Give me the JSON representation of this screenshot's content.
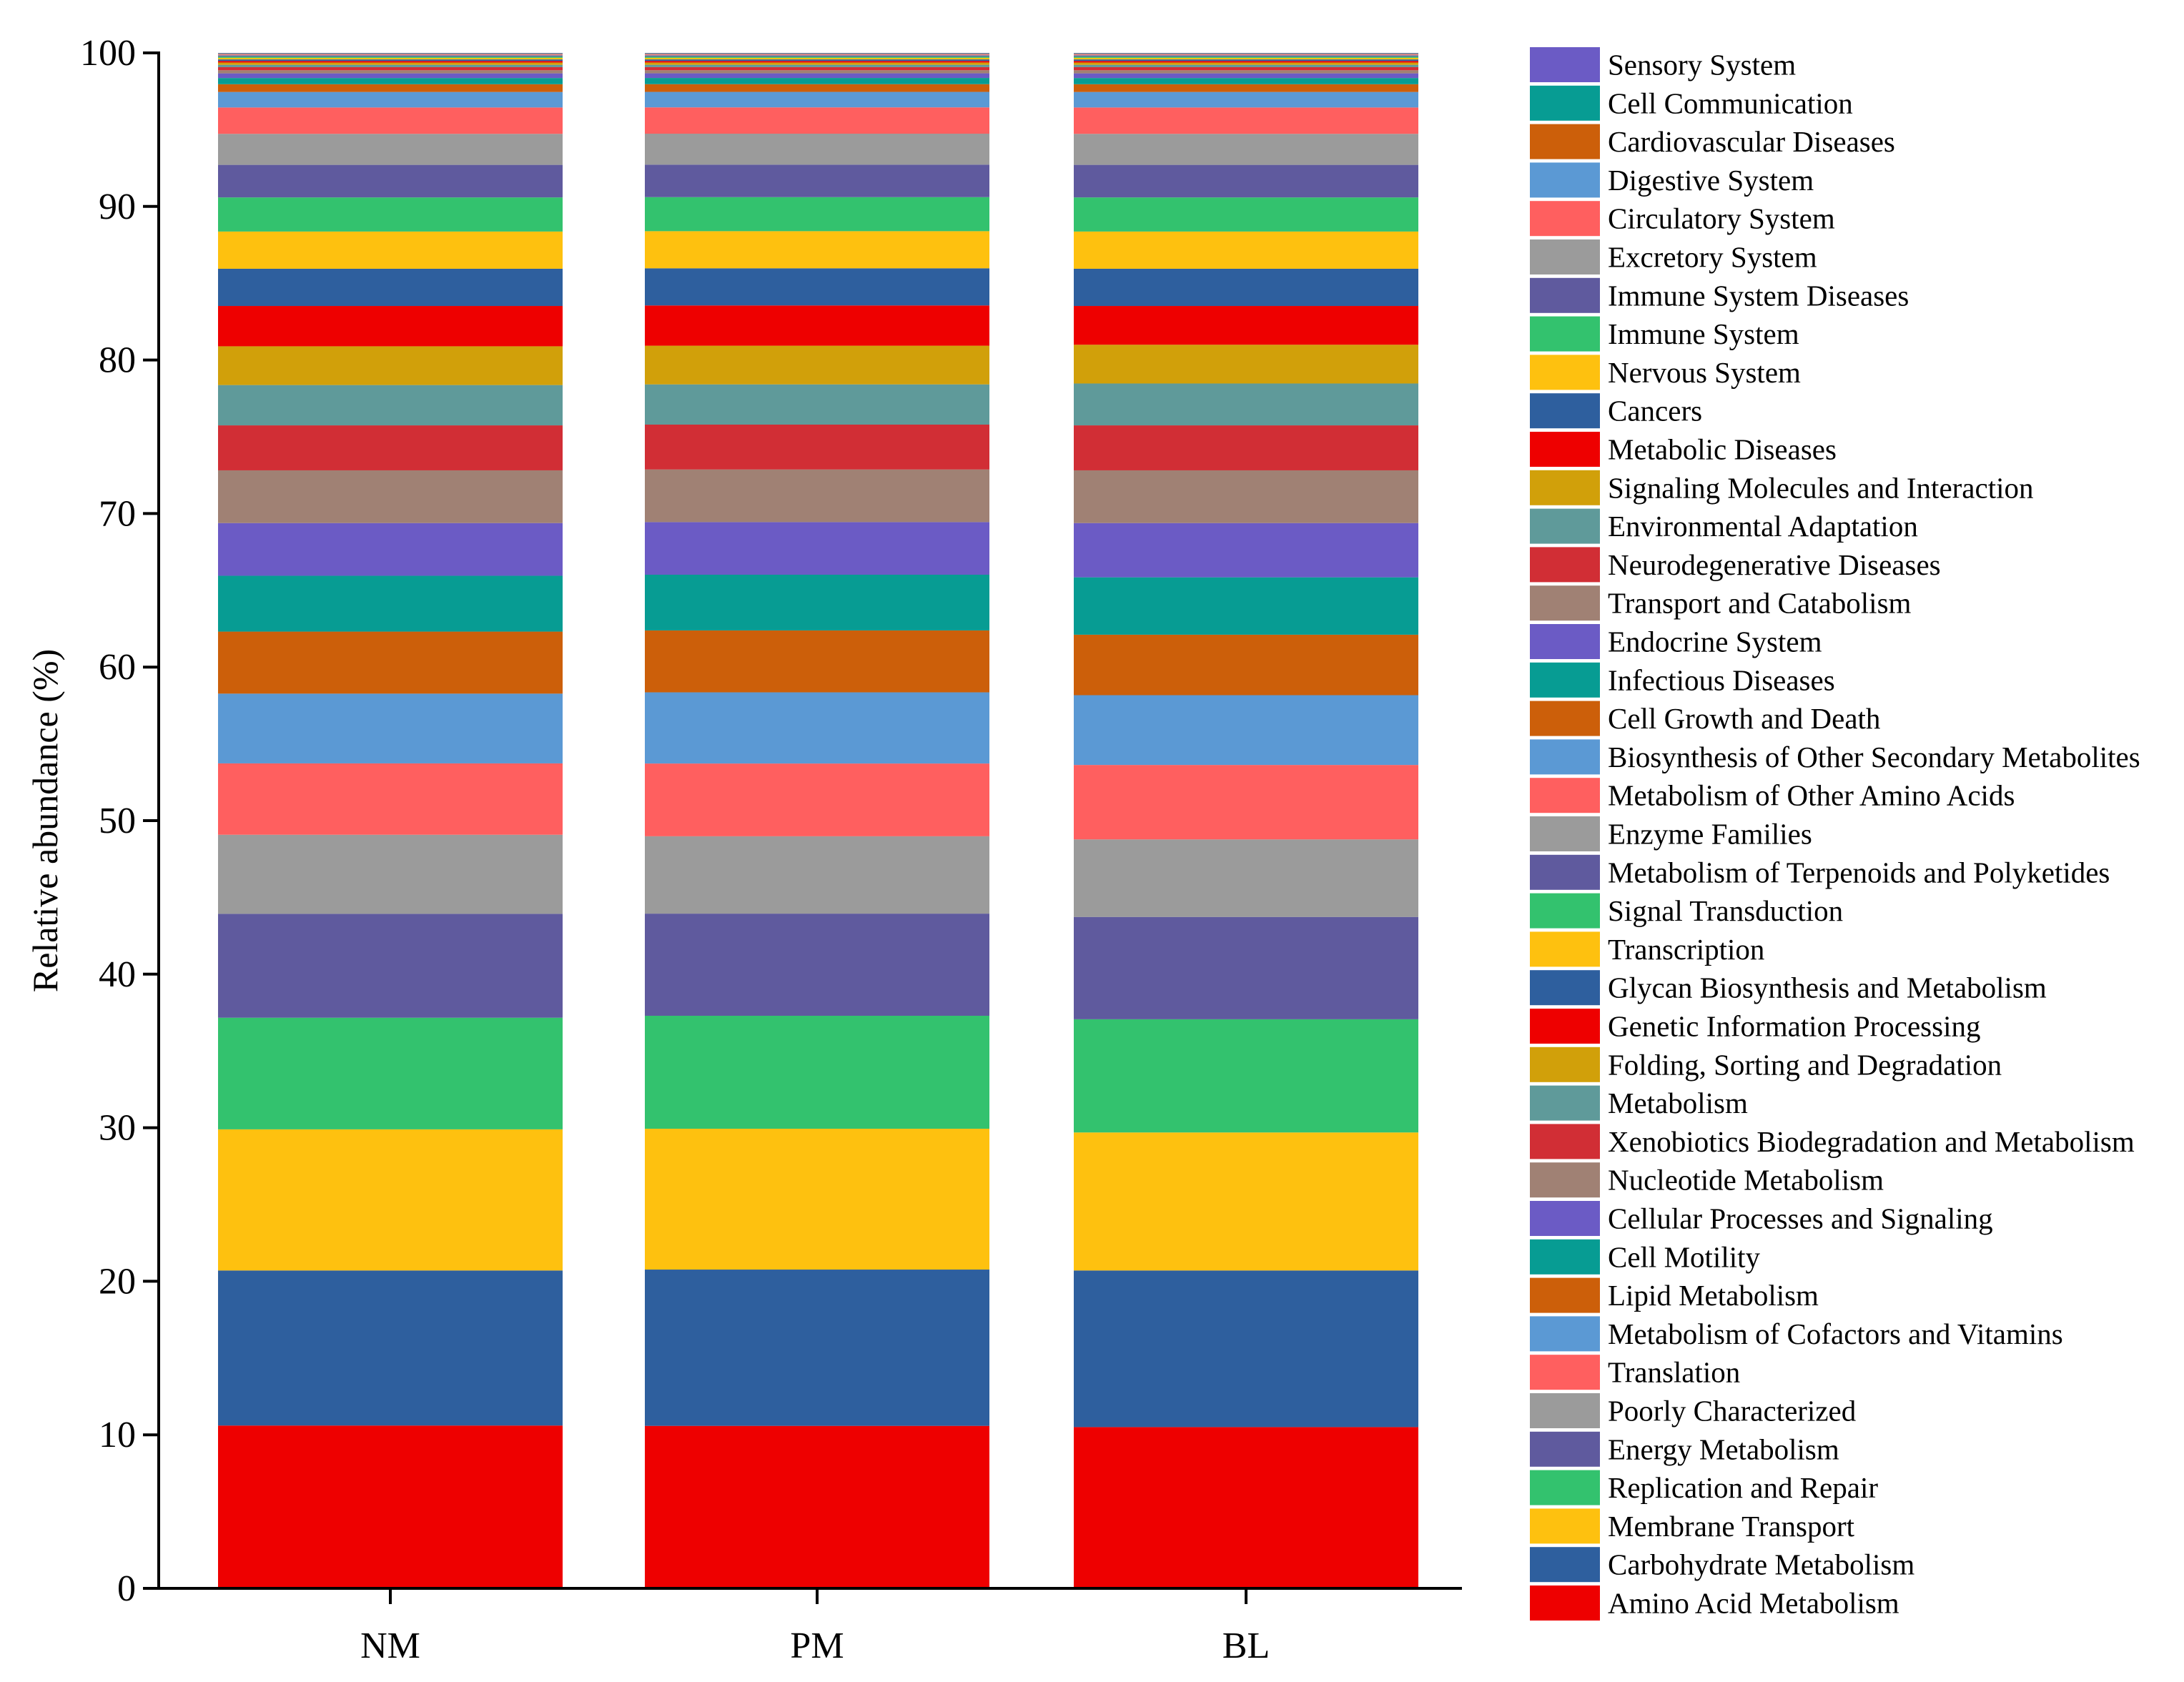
{
  "chart_data": {
    "type": "bar",
    "stacked": true,
    "categories": [
      "NM",
      "PM",
      "BL"
    ],
    "ylabel": "Relative abundance (%)",
    "xlabel": "",
    "ylim": [
      0,
      100
    ],
    "yticks": [
      0,
      10,
      20,
      30,
      40,
      50,
      60,
      70,
      80,
      90,
      100
    ],
    "grid": false,
    "legend_position": "right",
    "series": [
      {
        "name": "Amino Acid Metabolism",
        "color": "#ee0000",
        "values": [
          10.5,
          10.5,
          10.4
        ]
      },
      {
        "name": "Carbohydrate Metabolism",
        "color": "#2e5f9e",
        "values": [
          10.0,
          10.1,
          10.1
        ]
      },
      {
        "name": "Membrane Transport",
        "color": "#fec10f",
        "values": [
          9.1,
          9.1,
          8.9
        ]
      },
      {
        "name": "Replication and Repair",
        "color": "#33c26e",
        "values": [
          7.2,
          7.3,
          7.3
        ]
      },
      {
        "name": "Energy Metabolism",
        "color": "#5f5a9e",
        "values": [
          6.7,
          6.6,
          6.6
        ]
      },
      {
        "name": "Poorly Characterized",
        "color": "#9b9b9b",
        "values": [
          5.1,
          5.0,
          5.0
        ]
      },
      {
        "name": "Translation",
        "color": "#ff5f5f",
        "values": [
          4.6,
          4.7,
          4.8
        ]
      },
      {
        "name": "Metabolism of Cofactors and Vitamins",
        "color": "#5b99d4",
        "values": [
          4.5,
          4.6,
          4.5
        ]
      },
      {
        "name": "Lipid Metabolism",
        "color": "#cc5f0a",
        "values": [
          4.0,
          4.0,
          3.9
        ]
      },
      {
        "name": "Cell Motility",
        "color": "#079c93",
        "values": [
          3.6,
          3.6,
          3.7
        ]
      },
      {
        "name": "Cellular Processes and Signaling",
        "color": "#6b5bc5",
        "values": [
          3.4,
          3.4,
          3.5
        ]
      },
      {
        "name": "Nucleotide Metabolism",
        "color": "#a08174",
        "values": [
          3.4,
          3.4,
          3.4
        ]
      },
      {
        "name": "Xenobiotics Biodegradation and Metabolism",
        "color": "#d12e35",
        "values": [
          2.9,
          2.9,
          2.9
        ]
      },
      {
        "name": "Metabolism",
        "color": "#5f9a9a",
        "values": [
          2.6,
          2.6,
          2.7
        ]
      },
      {
        "name": "Folding, Sorting and Degradation",
        "color": "#d1a00a",
        "values": [
          2.5,
          2.5,
          2.5
        ]
      },
      {
        "name": "Genetic Information Processing",
        "color": "#ee0000",
        "values": [
          2.6,
          2.6,
          2.5
        ]
      },
      {
        "name": "Glycan Biosynthesis and Metabolism",
        "color": "#2e5f9e",
        "values": [
          2.4,
          2.4,
          2.4
        ]
      },
      {
        "name": "Transcription",
        "color": "#fec10f",
        "values": [
          2.4,
          2.4,
          2.4
        ]
      },
      {
        "name": "Signal Transduction",
        "color": "#33c26e",
        "values": [
          2.2,
          2.2,
          2.2
        ]
      },
      {
        "name": "Metabolism of Terpenoids and Polyketides",
        "color": "#5f5a9e",
        "values": [
          2.1,
          2.1,
          2.1
        ]
      },
      {
        "name": "Enzyme Families",
        "color": "#9b9b9b",
        "values": [
          2.0,
          2.0,
          2.0
        ]
      },
      {
        "name": "Metabolism of Other Amino Acids",
        "color": "#ff5f5f",
        "values": [
          1.7,
          1.7,
          1.7
        ]
      },
      {
        "name": "Biosynthesis of Other Secondary Metabolites",
        "color": "#5b99d4",
        "values": [
          1.0,
          1.0,
          1.0
        ]
      },
      {
        "name": "Cell Growth and Death",
        "color": "#cc5f0a",
        "values": [
          0.5,
          0.5,
          0.5
        ]
      },
      {
        "name": "Infectious Diseases",
        "color": "#079c93",
        "values": [
          0.4,
          0.4,
          0.4
        ]
      },
      {
        "name": "Endocrine System",
        "color": "#6b5bc5",
        "values": [
          0.3,
          0.3,
          0.3
        ]
      },
      {
        "name": "Transport and Catabolism",
        "color": "#a08174",
        "values": [
          0.2,
          0.2,
          0.2
        ]
      },
      {
        "name": "Neurodegenerative Diseases",
        "color": "#d12e35",
        "values": [
          0.2,
          0.2,
          0.2
        ]
      },
      {
        "name": "Environmental Adaptation",
        "color": "#5f9a9a",
        "values": [
          0.15,
          0.15,
          0.15
        ]
      },
      {
        "name": "Signaling Molecules and Interaction",
        "color": "#d1a00a",
        "values": [
          0.15,
          0.15,
          0.15
        ]
      },
      {
        "name": "Metabolic Diseases",
        "color": "#ee0000",
        "values": [
          0.1,
          0.1,
          0.1
        ]
      },
      {
        "name": "Cancers",
        "color": "#2e5f9e",
        "values": [
          0.1,
          0.1,
          0.1
        ]
      },
      {
        "name": "Nervous System",
        "color": "#fec10f",
        "values": [
          0.1,
          0.1,
          0.1
        ]
      },
      {
        "name": "Immune System",
        "color": "#33c26e",
        "values": [
          0.08,
          0.08,
          0.08
        ]
      },
      {
        "name": "Immune System Diseases",
        "color": "#5f5a9e",
        "values": [
          0.06,
          0.06,
          0.06
        ]
      },
      {
        "name": "Excretory System",
        "color": "#9b9b9b",
        "values": [
          0.05,
          0.05,
          0.05
        ]
      },
      {
        "name": "Circulatory System",
        "color": "#ff5f5f",
        "values": [
          0.04,
          0.04,
          0.04
        ]
      },
      {
        "name": "Digestive System",
        "color": "#5b99d4",
        "values": [
          0.03,
          0.03,
          0.03
        ]
      },
      {
        "name": "Cardiovascular Diseases",
        "color": "#cc5f0a",
        "values": [
          0.03,
          0.03,
          0.03
        ]
      },
      {
        "name": "Cell Communication",
        "color": "#079c93",
        "values": [
          0.02,
          0.02,
          0.02
        ]
      },
      {
        "name": "Sensory System",
        "color": "#6b5bc5",
        "values": [
          0.01,
          0.01,
          0.01
        ]
      }
    ]
  }
}
